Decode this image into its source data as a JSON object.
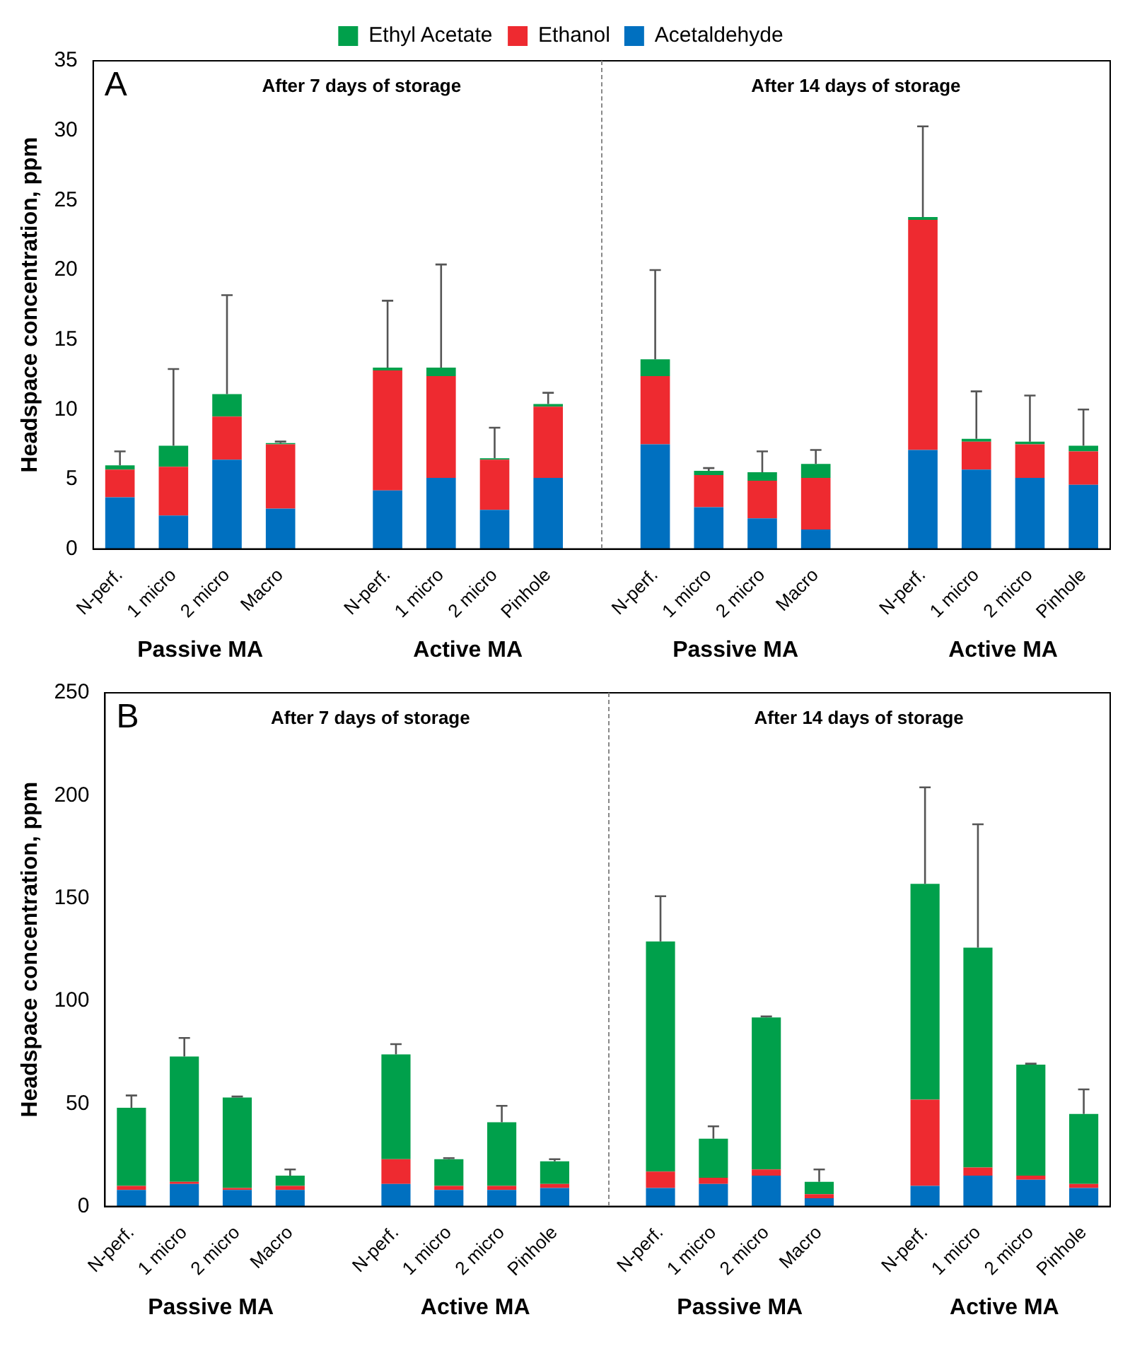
{
  "chart_data": [
    {
      "type": "bar",
      "stacked": true,
      "ylabel": "Headspace concentration, ppm",
      "legend": "top",
      "grid": false,
      "annotations": [
        "A",
        "After 7 days of storage",
        "After 14 days of storage",
        "Passive MA",
        "Active MA",
        "Passive MA",
        "Active MA"
      ],
      "categories": [
        "N-perf.",
        "1 micro",
        "2 micro",
        "Macro",
        null,
        "N-perf.",
        "1 micro",
        "2 micro",
        "Pinhole",
        null,
        "N-perf.",
        "1 micro",
        "2 micro",
        "Macro",
        null,
        "N-perf.",
        "1 micro",
        "2 micro",
        "Pinhole"
      ],
      "ylim": [
        0,
        35
      ],
      "yticks": [
        0,
        5,
        10,
        15,
        20,
        25,
        30,
        35
      ],
      "series": [
        {
          "name": "Acetaldehyde",
          "color": "#0070c0",
          "values": [
            3.7,
            2.4,
            6.4,
            2.9,
            null,
            4.2,
            5.1,
            2.8,
            5.1,
            null,
            7.5,
            3.0,
            2.2,
            1.4,
            null,
            7.1,
            5.7,
            5.1,
            4.6
          ]
        },
        {
          "name": "Ethanol",
          "color": "#ee2a30",
          "values": [
            2.0,
            3.5,
            3.1,
            4.6,
            null,
            8.6,
            7.3,
            3.6,
            5.1,
            null,
            4.9,
            2.3,
            2.7,
            3.7,
            null,
            16.5,
            2.0,
            2.4,
            2.4
          ]
        },
        {
          "name": "Ethyl Acetate",
          "color": "#00a04b",
          "values": [
            0.3,
            1.5,
            1.6,
            0.1,
            null,
            0.2,
            0.6,
            0.1,
            0.2,
            null,
            1.2,
            0.3,
            0.6,
            1.0,
            null,
            0.2,
            0.2,
            0.2,
            0.4
          ],
          "errors": [
            [
              6.0,
              7.0
            ],
            [
              7.4,
              12.9
            ],
            [
              11.1,
              18.2
            ],
            [
              7.6,
              7.7
            ],
            null,
            [
              13.0,
              17.8
            ],
            [
              13.0,
              20.4
            ],
            [
              6.5,
              8.7
            ],
            [
              10.4,
              11.2
            ],
            null,
            [
              13.6,
              20.0
            ],
            [
              5.6,
              5.8
            ],
            [
              5.5,
              7.0
            ],
            [
              6.1,
              7.1
            ],
            null,
            [
              23.8,
              30.3
            ],
            [
              7.9,
              11.3
            ],
            [
              7.7,
              11.0
            ],
            [
              7.4,
              10.0
            ]
          ]
        }
      ]
    },
    {
      "type": "bar",
      "stacked": true,
      "ylabel": "Headspace concentration, ppm",
      "legend": false,
      "grid": false,
      "annotations": [
        "B",
        "After 7 days of storage",
        "After 14 days of storage",
        "Passive MA",
        "Active MA",
        "Passive MA",
        "Active MA"
      ],
      "categories": [
        "N-perf.",
        "1 micro",
        "2 micro",
        "Macro",
        null,
        "N-perf.",
        "1 micro",
        "2 micro",
        "Pinhole",
        null,
        "N-perf.",
        "1 micro",
        "2 micro",
        "Macro",
        null,
        "N-perf.",
        "1 micro",
        "2 micro",
        "Pinhole"
      ],
      "ylim": [
        0,
        250
      ],
      "yticks": [
        0,
        50,
        100,
        150,
        200,
        250
      ],
      "series": [
        {
          "color": "#0070c0",
          "values": [
            8,
            11,
            8,
            8,
            null,
            11,
            8,
            8,
            9,
            null,
            9,
            11,
            15,
            4,
            null,
            10,
            15,
            13,
            9
          ]
        },
        {
          "color": "#ee2a30",
          "values": [
            2,
            1,
            1,
            2,
            null,
            12,
            2,
            2,
            2,
            null,
            8,
            3,
            3,
            2,
            null,
            42,
            4,
            2,
            2
          ]
        },
        {
          "color": "#00a04b",
          "values": [
            38,
            61,
            44,
            5,
            null,
            51,
            13,
            31,
            11,
            null,
            112,
            19,
            74,
            6,
            null,
            105,
            107,
            54,
            34
          ],
          "errors": [
            [
              48,
              54
            ],
            [
              73,
              82
            ],
            [
              53,
              53.5
            ],
            [
              15,
              18
            ],
            null,
            [
              74,
              79
            ],
            [
              23,
              23.5
            ],
            [
              41,
              49
            ],
            [
              22,
              23
            ],
            null,
            [
              129,
              151
            ],
            [
              33,
              39
            ],
            [
              92,
              92.5
            ],
            [
              12,
              18
            ],
            null,
            [
              157,
              204
            ],
            [
              126,
              186
            ],
            [
              69,
              69.5
            ],
            [
              45,
              57
            ]
          ]
        }
      ]
    }
  ]
}
